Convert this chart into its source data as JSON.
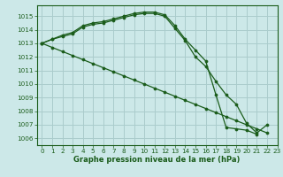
{
  "xlabel": "Graphe pression niveau de la mer (hPa)",
  "bg_color": "#cce8e8",
  "grid_color": "#aacccc",
  "line_color": "#1a5c1a",
  "xlim": [
    -0.5,
    23
  ],
  "ylim": [
    1005.5,
    1015.8
  ],
  "yticks": [
    1006,
    1007,
    1008,
    1009,
    1010,
    1011,
    1012,
    1013,
    1014,
    1015
  ],
  "xticks": [
    0,
    1,
    2,
    3,
    4,
    5,
    6,
    7,
    8,
    9,
    10,
    11,
    12,
    13,
    14,
    15,
    16,
    17,
    18,
    19,
    20,
    21,
    22,
    23
  ],
  "line1_x": [
    0,
    1,
    2,
    3,
    4,
    5,
    6,
    7,
    8,
    9,
    10,
    11,
    12,
    13,
    14,
    15,
    16,
    17,
    18,
    19,
    20,
    21,
    22
  ],
  "line1_y": [
    1013.0,
    1013.3,
    1013.5,
    1013.7,
    1014.2,
    1014.4,
    1014.5,
    1014.7,
    1014.9,
    1015.1,
    1015.2,
    1015.2,
    1015.0,
    1014.1,
    1013.2,
    1012.0,
    1011.3,
    1010.2,
    1009.2,
    1008.5,
    1007.1,
    1006.4,
    1007.0
  ],
  "line2_x": [
    0,
    1,
    2,
    3,
    4,
    5,
    6,
    7,
    8,
    9,
    10,
    11,
    12,
    13,
    14,
    15,
    16,
    17,
    18,
    19,
    20,
    21
  ],
  "line2_y": [
    1013.0,
    1013.3,
    1013.6,
    1013.8,
    1014.3,
    1014.5,
    1014.6,
    1014.8,
    1015.0,
    1015.2,
    1015.3,
    1015.3,
    1015.1,
    1014.3,
    1013.3,
    1012.5,
    1011.7,
    1009.2,
    1006.8,
    1006.7,
    1006.6,
    1006.3
  ],
  "line3_x": [
    0,
    1,
    2,
    3,
    4,
    5,
    6,
    7,
    8,
    9,
    10,
    11,
    12,
    13,
    14,
    15,
    16,
    17,
    18,
    19,
    20,
    21,
    22
  ],
  "line3_y": [
    1013.0,
    1012.7,
    1012.4,
    1012.1,
    1011.8,
    1011.5,
    1011.2,
    1010.9,
    1010.6,
    1010.3,
    1010.0,
    1009.7,
    1009.4,
    1009.1,
    1008.8,
    1008.5,
    1008.2,
    1007.9,
    1007.6,
    1007.3,
    1007.0,
    1006.7,
    1006.4
  ]
}
